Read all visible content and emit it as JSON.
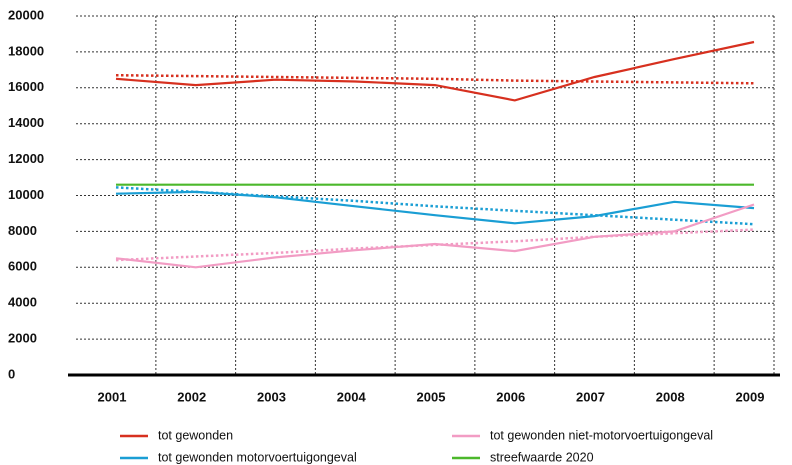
{
  "chart_data": {
    "type": "line",
    "categories": [
      "2001",
      "2002",
      "2003",
      "2004",
      "2005",
      "2006",
      "2007",
      "2008",
      "2009"
    ],
    "series": [
      {
        "name": "tot gewonden",
        "color": "#d7301f",
        "values": [
          16500,
          16150,
          16450,
          16350,
          16150,
          15300,
          16600,
          17600,
          18550
        ]
      },
      {
        "color": "#d7301f",
        "dotted": true,
        "values": [
          16700,
          16650,
          16600,
          16550,
          16500,
          16400,
          16350,
          16300,
          16250
        ]
      },
      {
        "name": "tot gewonden motorvoertuigongeval",
        "color": "#1a9ed4",
        "values": [
          10100,
          10200,
          9900,
          9400,
          8900,
          8450,
          8850,
          9650,
          9300
        ]
      },
      {
        "color": "#1a9ed4",
        "dotted": true,
        "values": [
          10450,
          10200,
          9950,
          9700,
          9400,
          9150,
          8900,
          8650,
          8400
        ]
      },
      {
        "name": "tot gewonden niet-motorvoertuigongeval",
        "color": "#f29cc4",
        "values": [
          6500,
          6000,
          6550,
          6950,
          7300,
          6900,
          7700,
          8000,
          9500
        ]
      },
      {
        "color": "#f29cc4",
        "dotted": true,
        "values": [
          6400,
          6600,
          6800,
          7050,
          7250,
          7450,
          7700,
          7900,
          8100
        ]
      },
      {
        "name": "streefwaarde 2020",
        "color": "#4cb82b",
        "values": [
          10600,
          10600,
          10600,
          10600,
          10600,
          10600,
          10600,
          10600,
          10600
        ]
      }
    ],
    "ylim": [
      0,
      20000
    ],
    "yticks": [
      0,
      2000,
      4000,
      6000,
      8000,
      10000,
      12000,
      14000,
      16000,
      18000,
      20000
    ],
    "grid": true
  }
}
